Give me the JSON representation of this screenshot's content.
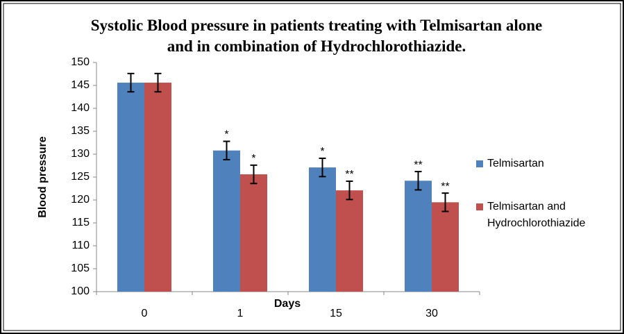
{
  "chart_data": {
    "type": "bar",
    "title": "Systolic Blood pressure in patients treating with Telmisartan alone and in combination of Hydrochlorothiazide.",
    "x_label": "Days",
    "y_label": "Blood pressure",
    "categories": [
      "0",
      "1",
      "15",
      "30"
    ],
    "series": [
      {
        "name": "Telmisartan",
        "color": "#4f81bd",
        "values": [
          145.6,
          130.8,
          127.1,
          124.2
        ],
        "errors": [
          2,
          2,
          2,
          2
        ],
        "annotations": [
          null,
          "*",
          "*",
          "**"
        ]
      },
      {
        "name": "Telmisartan and Hydrochlorothiazide",
        "color": "#c0504d",
        "values": [
          145.6,
          125.6,
          122.1,
          119.5
        ],
        "errors": [
          2,
          2,
          2,
          2
        ],
        "annotations": [
          null,
          "*",
          "**",
          "**"
        ]
      }
    ],
    "ylim": [
      100,
      150
    ],
    "yticks": [
      100,
      105,
      110,
      115,
      120,
      125,
      130,
      135,
      140,
      145,
      150
    ],
    "grid": false,
    "legend": "right"
  }
}
